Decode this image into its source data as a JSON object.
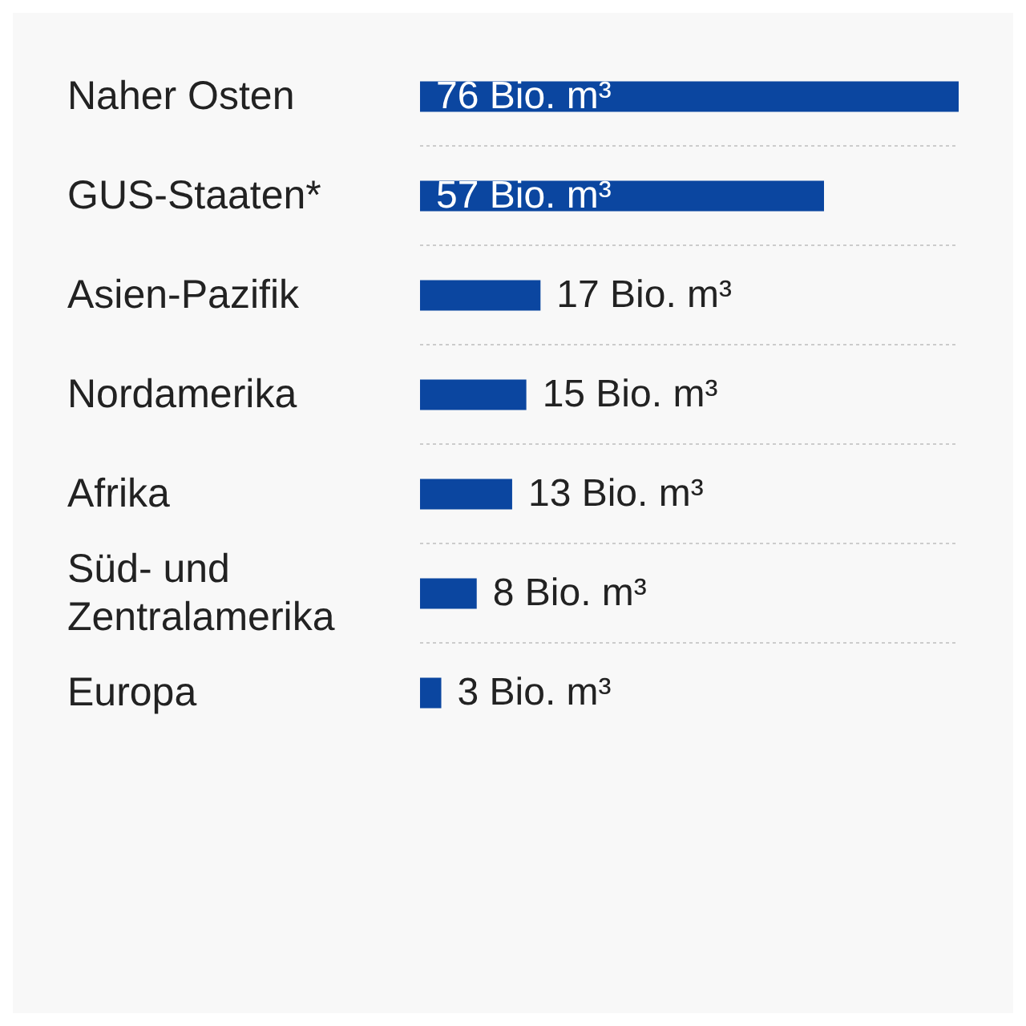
{
  "chart_data": {
    "type": "bar",
    "orientation": "horizontal",
    "categories": [
      "Naher Osten",
      "GUS-Staaten*",
      "Asien-Pazifik",
      "Nordamerika",
      "Afrika",
      "Süd- und Zentralamerika",
      "Europa"
    ],
    "values": [
      76,
      57,
      17,
      15,
      13,
      8,
      3
    ],
    "value_labels": [
      "76 Bio. m³",
      "57 Bio. m³",
      "17 Bio. m³",
      "15 Bio. m³",
      "13 Bio. m³",
      "8 Bio. m³",
      "3 Bio. m³"
    ],
    "color": "#0b46a0",
    "grid": "y"
  }
}
